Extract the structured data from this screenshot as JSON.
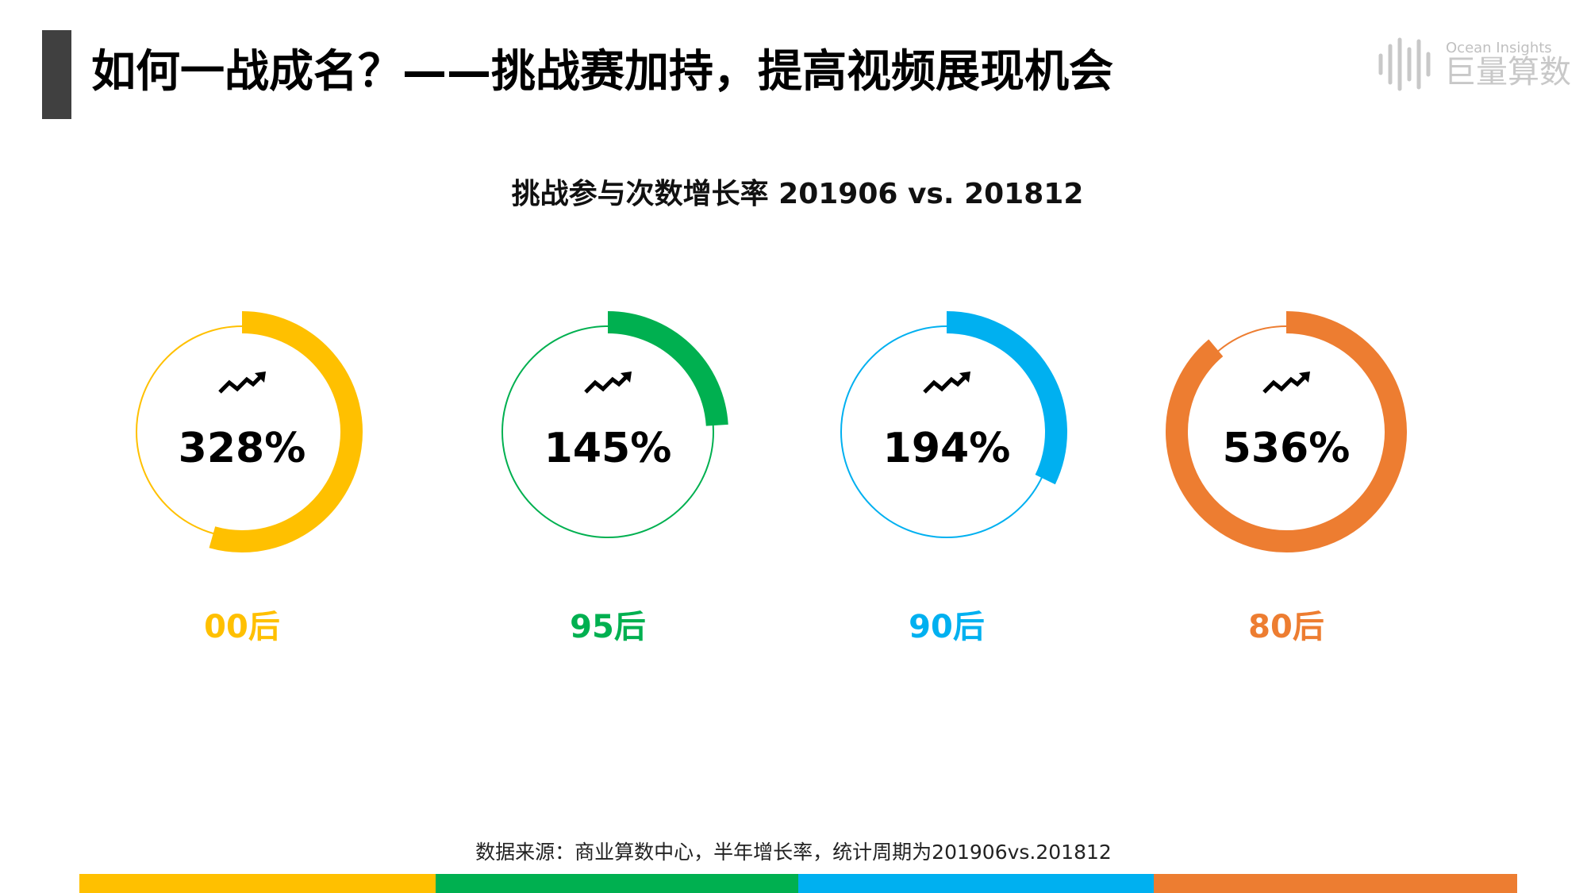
{
  "header": {
    "title": "如何一战成名？——挑战赛加持，提高视频展现机会",
    "logo_en": "Ocean Insights",
    "logo_cn": "巨量算数"
  },
  "chart_data": {
    "type": "donut",
    "title": "挑战参与次数增长率 201906 vs. 201812",
    "categories": [
      "00后",
      "95后",
      "90后",
      "80后"
    ],
    "values": [
      328,
      145,
      194,
      536
    ],
    "value_labels": [
      "328%",
      "145%",
      "194%",
      "536%"
    ],
    "colors": [
      "#ffc000",
      "#00b050",
      "#00b0f0",
      "#ed7d31"
    ]
  },
  "footer": {
    "source": "数据来源：商业算数中心，半年增长率，统计周期为201906vs.201812"
  }
}
